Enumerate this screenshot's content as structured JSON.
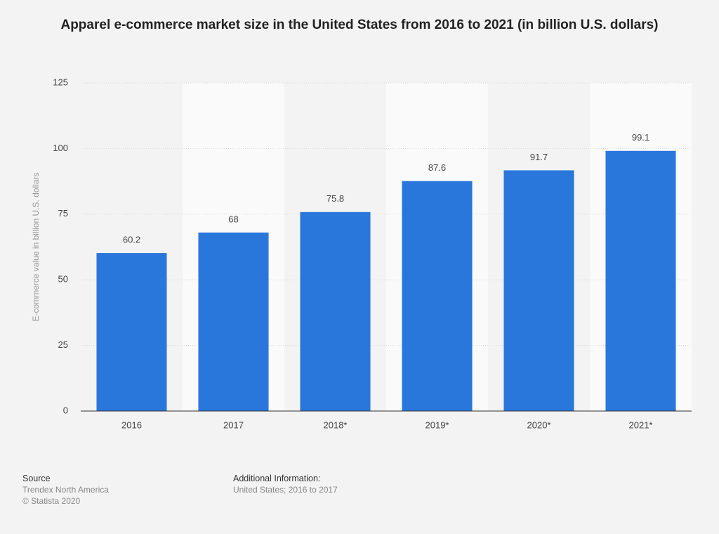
{
  "chart_data": {
    "type": "bar",
    "title": "Apparel e-commerce market size in the United States from 2016 to 2021 (in billion U.S. dollars)",
    "y_label": "E-commerce value in billion U.S. dollars",
    "categories": [
      "2016",
      "2017",
      "2018*",
      "2019*",
      "2020*",
      "2021*"
    ],
    "values": [
      60.2,
      68,
      75.8,
      87.6,
      91.7,
      99.1
    ],
    "color": "#2a77dc",
    "ylim": [
      0,
      125
    ],
    "yticks": [
      0,
      25,
      50,
      75,
      100,
      125
    ],
    "grid": true
  },
  "footer": {
    "source_heading": "Source",
    "source_lines": [
      "Trendex North America",
      "© Statista 2020"
    ],
    "info_heading": "Additional Information:",
    "info_lines": [
      "United States; 2016 to 2017"
    ]
  }
}
